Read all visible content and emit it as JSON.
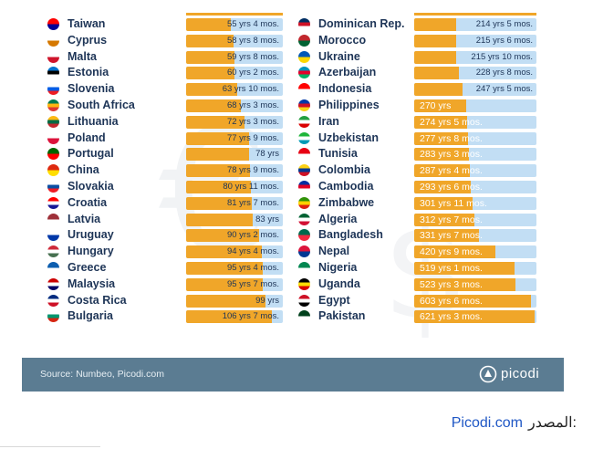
{
  "chart_data": [
    {
      "type": "bar",
      "categories": [
        "Taiwan",
        "Cyprus",
        "Malta",
        "Estonia",
        "Slovenia",
        "South Africa",
        "Lithuania",
        "Poland",
        "Portugal",
        "China",
        "Slovakia",
        "Croatia",
        "Latvia",
        "Uruguay",
        "Hungary",
        "Greece",
        "Malaysia",
        "Costa Rica",
        "Bulgaria"
      ],
      "values": [
        55.33,
        58.67,
        59.67,
        60.17,
        63.83,
        68.25,
        72.25,
        77.75,
        78,
        78.75,
        80.92,
        81.58,
        83,
        90.17,
        94.33,
        95.33,
        95.58,
        99,
        106.58
      ],
      "value_labels": [
        "55 yrs 4 mos.",
        "58 yrs 8 mos.",
        "59 yrs 8 mos.",
        "60 yrs 2 mos.",
        "63 yrs 10 mos.",
        "68 yrs 3 mos.",
        "72 yrs 3 mos.",
        "77 yrs 9 mos.",
        "78 yrs",
        "78 yrs 9 mos.",
        "80 yrs 11 mos.",
        "81 yrs 7 mos.",
        "83 yrs",
        "90 yrs 2 mos.",
        "94 yrs 4 mos.",
        "95 yrs 4 mos.",
        "95 yrs 7 mos.",
        "99 yrs",
        "106 yrs 7 mos."
      ],
      "flag_colors": [
        [
          "#fe0000",
          "#000095"
        ],
        [
          "#ffffff",
          "#d57800"
        ],
        [
          "#ffffff",
          "#cf142b"
        ],
        [
          "#0072ce",
          "#000000",
          "#ffffff"
        ],
        [
          "#ffffff",
          "#005ce5",
          "#ed1c24"
        ],
        [
          "#007a4d",
          "#ffb612",
          "#de3831"
        ],
        [
          "#fdb913",
          "#006a44",
          "#c1272d"
        ],
        [
          "#ffffff",
          "#dc143c"
        ],
        [
          "#006600",
          "#ff0000"
        ],
        [
          "#de2910",
          "#ffde00"
        ],
        [
          "#ffffff",
          "#0b4ea2",
          "#ee1c25"
        ],
        [
          "#ff0000",
          "#ffffff",
          "#171796"
        ],
        [
          "#9e3039",
          "#ffffff"
        ],
        [
          "#ffffff",
          "#0038a8"
        ],
        [
          "#ce2939",
          "#ffffff",
          "#477050"
        ],
        [
          "#0d5eaf",
          "#ffffff"
        ],
        [
          "#cc0001",
          "#ffffff",
          "#010066"
        ],
        [
          "#002b7f",
          "#ffffff",
          "#ce1126"
        ],
        [
          "#ffffff",
          "#00966e",
          "#d62612"
        ]
      ],
      "xlim": [
        0,
        120
      ]
    },
    {
      "type": "bar",
      "categories": [
        "Dominican Rep.",
        "Morocco",
        "Ukraine",
        "Azerbaijan",
        "Indonesia",
        "Philippines",
        "Iran",
        "Uzbekistan",
        "Tunisia",
        "Colombia",
        "Cambodia",
        "Zimbabwe",
        "Algeria",
        "Bangladesh",
        "Nepal",
        "Nigeria",
        "Uganda",
        "Egypt",
        "Pakistan"
      ],
      "values": [
        214.42,
        215.5,
        215.83,
        228.67,
        247.42,
        270,
        274.42,
        277.67,
        283.25,
        287.33,
        293.5,
        301.92,
        312.58,
        331.58,
        420.75,
        519.08,
        523.25,
        603.5,
        621.25
      ],
      "value_labels": [
        "214 yrs 5 mos.",
        "215 yrs 6 mos.",
        "215 yrs 10 mos.",
        "228 yrs 8 mos.",
        "247 yrs 5 mos.",
        "270 yrs",
        "274 yrs 5 mos.",
        "277 yrs 8 mos.",
        "283 yrs 3 mos.",
        "287 yrs 4 mos.",
        "293 yrs 6 mos.",
        "301 yrs 11 mos.",
        "312 yrs 7 mos.",
        "331 yrs 7 mos.",
        "420 yrs 9 mos.",
        "519 yrs 1 mos.",
        "523 yrs 3 mos.",
        "603 yrs 6 mos.",
        "621 yrs 3 mos."
      ],
      "flag_colors": [
        [
          "#002d62",
          "#ce1126",
          "#ffffff"
        ],
        [
          "#c1272d",
          "#006233"
        ],
        [
          "#0057b7",
          "#ffd700"
        ],
        [
          "#0092bc",
          "#e4002b",
          "#00af66"
        ],
        [
          "#ff0000",
          "#ffffff"
        ],
        [
          "#0038a8",
          "#ce1126",
          "#fcd116"
        ],
        [
          "#239f40",
          "#ffffff",
          "#da0000"
        ],
        [
          "#1eb53a",
          "#ffffff",
          "#0099b5"
        ],
        [
          "#e70013",
          "#ffffff"
        ],
        [
          "#fcd116",
          "#003893",
          "#ce1126"
        ],
        [
          "#032ea1",
          "#e00025",
          "#ffffff"
        ],
        [
          "#319208",
          "#ffd200",
          "#de2010"
        ],
        [
          "#006233",
          "#ffffff",
          "#d21034"
        ],
        [
          "#006a4e",
          "#f42a41"
        ],
        [
          "#dc143c",
          "#003893"
        ],
        [
          "#008751",
          "#ffffff"
        ],
        [
          "#000000",
          "#fcdc04",
          "#d90000"
        ],
        [
          "#ce1126",
          "#ffffff",
          "#000000"
        ],
        [
          "#01411c",
          "#ffffff"
        ]
      ],
      "xlim": [
        0,
        630
      ]
    }
  ],
  "footer": {
    "source": "Source: Numbeo, Picodi.com",
    "brand": "picodi"
  },
  "credit": {
    "link": "Picodi.com",
    "label": "المصدر:"
  },
  "colors": {
    "fill": "#f0a629",
    "track": "#c2def4",
    "text": "#1e3557",
    "footer_bg": "#5b7c92",
    "link": "#1f57c5"
  }
}
